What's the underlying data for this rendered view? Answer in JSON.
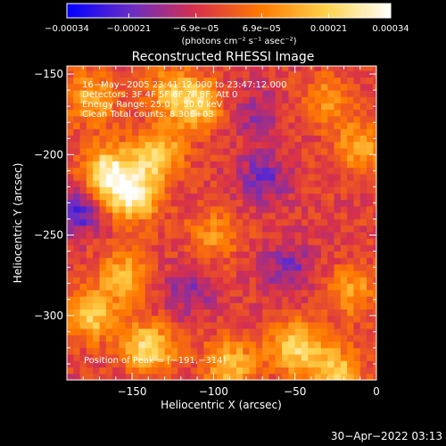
{
  "chart_data": {
    "type": "heatmap",
    "title": "Reconstructed RHESSI Image",
    "xlabel": "Heliocentric X (arcsec)",
    "ylabel": "Heliocentric Y (arcsec)",
    "xlim": [
      -190,
      0
    ],
    "ylim": [
      -340,
      -145
    ],
    "x_ticks": [
      -150,
      -100,
      -50,
      0
    ],
    "x_tick_labels": [
      "−150",
      "−100",
      "−50",
      "0"
    ],
    "y_ticks": [
      -150,
      -200,
      -250,
      -300
    ],
    "y_tick_labels": [
      "−150",
      "−200",
      "−250",
      "−300"
    ],
    "colorbar": {
      "range": [
        -0.00034,
        0.00034
      ],
      "ticks": [
        -0.00034,
        -0.00021,
        -6.9e-05,
        6.9e-05,
        0.00021,
        0.00034
      ],
      "tick_labels": [
        "−0.00034",
        "−0.00021",
        "−6.9e−05",
        "6.9e−05",
        "0.00021",
        "0.00034"
      ],
      "units_label": "(photons cm⁻² s⁻¹ asec⁻²)",
      "colormap": [
        "#0000ff",
        "#6a2dc4",
        "#d8304a",
        "#ff7a00",
        "#ffd24a",
        "#ffffff"
      ]
    },
    "annotations": [
      "16−May−2005 23:41:12.000 to 23:47:12.000",
      "Detectors: 3F 4F 5F 6F 7F 8F, Att 0",
      "Energy Range: 25.0 − 50.0 keV",
      "Clean     Total counts: 8.30E+03"
    ],
    "peak_label": "Position of Peak = [−191,−314]",
    "peak": {
      "x": -191,
      "y": -314
    },
    "hot_regions": [
      {
        "x": -165,
        "y": -210,
        "value": 0.0003
      },
      {
        "x": -150,
        "y": -225,
        "value": 0.00034
      },
      {
        "x": -135,
        "y": -200,
        "value": 0.00026
      },
      {
        "x": -175,
        "y": -165,
        "value": 0.0002
      },
      {
        "x": -110,
        "y": -170,
        "value": 0.00022
      },
      {
        "x": -125,
        "y": -160,
        "value": 0.00018
      },
      {
        "x": -100,
        "y": -250,
        "value": 0.00014
      },
      {
        "x": -155,
        "y": -275,
        "value": 0.0002
      },
      {
        "x": -175,
        "y": -300,
        "value": 0.00024
      },
      {
        "x": -140,
        "y": -320,
        "value": 0.00028
      },
      {
        "x": -90,
        "y": -330,
        "value": 0.00022
      },
      {
        "x": -50,
        "y": -320,
        "value": 0.00026
      },
      {
        "x": -25,
        "y": -335,
        "value": 0.00024
      },
      {
        "x": -15,
        "y": -285,
        "value": 0.00016
      },
      {
        "x": -30,
        "y": -165,
        "value": 0.00014
      },
      {
        "x": -10,
        "y": -195,
        "value": 0.00018
      }
    ],
    "cold_regions": [
      {
        "x": -70,
        "y": -215,
        "value": -0.00016
      },
      {
        "x": -55,
        "y": -270,
        "value": -0.00014
      },
      {
        "x": -115,
        "y": -285,
        "value": -0.00012
      },
      {
        "x": -185,
        "y": -235,
        "value": -0.0002
      },
      {
        "x": -75,
        "y": -175,
        "value": -0.0001
      }
    ]
  },
  "footer": {
    "timestamp": "30−Apr−2022 03:13"
  }
}
